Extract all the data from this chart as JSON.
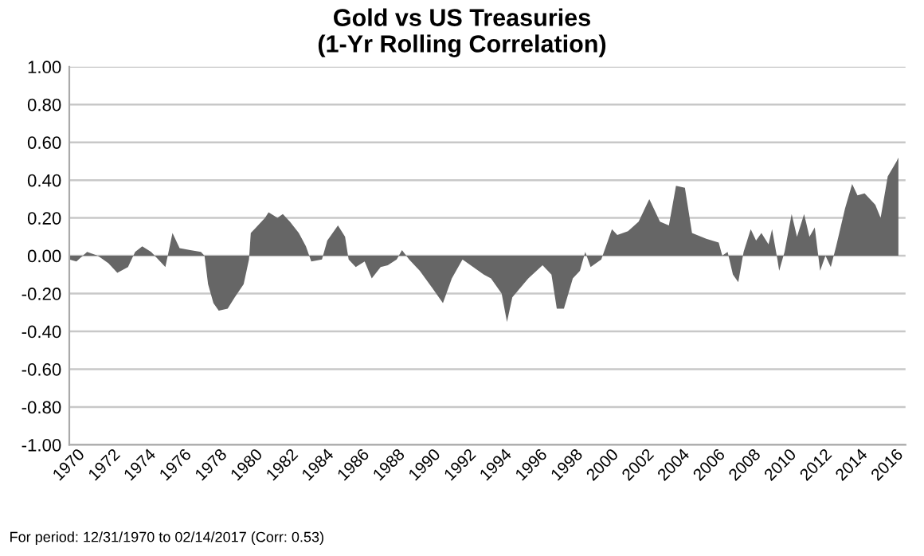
{
  "chart_data": {
    "type": "area",
    "title": "Gold vs US Treasuries\n(1-Yr Rolling Correlation)",
    "x": [
      1970.0,
      1970.4,
      1971.0,
      1971.6,
      1972.2,
      1972.7,
      1973.3,
      1973.7,
      1974.1,
      1974.6,
      1975.0,
      1975.4,
      1975.8,
      1976.2,
      1976.8,
      1977.4,
      1977.6,
      1977.8,
      1978.1,
      1978.4,
      1978.9,
      1979.3,
      1979.8,
      1980.1,
      1980.2,
      1980.5,
      1981.0,
      1981.2,
      1981.7,
      1982.0,
      1982.4,
      1982.9,
      1983.3,
      1983.6,
      1984.2,
      1984.5,
      1985.1,
      1985.5,
      1985.7,
      1986.1,
      1986.6,
      1987.0,
      1987.5,
      1987.9,
      1988.4,
      1988.7,
      1989.1,
      1989.7,
      1990.4,
      1991.0,
      1991.5,
      1992.1,
      1992.7,
      1993.3,
      1993.7,
      1994.3,
      1994.6,
      1994.9,
      1995.8,
      1996.6,
      1997.1,
      1997.4,
      1997.8,
      1998.3,
      1998.7,
      1999.0,
      1999.3,
      1999.9,
      2000.2,
      2000.5,
      2000.8,
      2001.4,
      2002.0,
      2002.6,
      2003.2,
      2003.7,
      2004.1,
      2004.6,
      2005.0,
      2005.8,
      2006.5,
      2006.7,
      2007.0,
      2007.3,
      2007.6,
      2007.9,
      2008.3,
      2008.6,
      2008.9,
      2009.3,
      2009.5,
      2009.8,
      2009.9,
      2010.2,
      2010.6,
      2010.9,
      2011.3,
      2011.6,
      2011.9,
      2012.2,
      2012.5,
      2012.8,
      2013.1,
      2013.6,
      2014.0,
      2014.3,
      2014.7,
      2015.3,
      2015.6,
      2016.0,
      2016.5,
      2016.6
    ],
    "series": [
      {
        "color": "#666666",
        "values": [
          -0.02,
          -0.03,
          0.02,
          0.0,
          -0.04,
          -0.09,
          -0.06,
          0.02,
          0.05,
          0.02,
          -0.02,
          -0.06,
          0.12,
          0.04,
          0.03,
          0.02,
          0.0,
          -0.15,
          -0.25,
          -0.29,
          -0.28,
          -0.22,
          -0.15,
          -0.02,
          0.12,
          0.15,
          0.2,
          0.23,
          0.2,
          0.22,
          0.18,
          0.12,
          0.05,
          -0.03,
          -0.02,
          0.08,
          0.16,
          0.1,
          -0.02,
          -0.06,
          -0.03,
          -0.12,
          -0.06,
          -0.05,
          -0.02,
          0.03,
          -0.02,
          -0.08,
          -0.17,
          -0.25,
          -0.12,
          -0.02,
          -0.06,
          -0.1,
          -0.12,
          -0.2,
          -0.35,
          -0.22,
          -0.12,
          -0.05,
          -0.1,
          -0.28,
          -0.28,
          -0.12,
          -0.08,
          0.02,
          -0.06,
          -0.02,
          0.06,
          0.14,
          0.11,
          0.13,
          0.18,
          0.3,
          0.18,
          0.16,
          0.37,
          0.36,
          0.12,
          0.09,
          0.07,
          0.0,
          0.02,
          -0.1,
          -0.14,
          0.02,
          0.14,
          0.08,
          0.12,
          0.06,
          0.14,
          -0.02,
          -0.08,
          0.02,
          0.22,
          0.1,
          0.22,
          0.1,
          0.15,
          -0.08,
          0.0,
          -0.06,
          0.05,
          0.25,
          0.38,
          0.32,
          0.33,
          0.27,
          0.2,
          0.42,
          0.5,
          0.52
        ]
      }
    ],
    "xlim": [
      1970,
      2017
    ],
    "xticks": [
      1970,
      1972,
      1974,
      1976,
      1978,
      1980,
      1982,
      1984,
      1986,
      1988,
      1990,
      1992,
      1994,
      1996,
      1998,
      2000,
      2002,
      2004,
      2006,
      2008,
      2010,
      2012,
      2014,
      2016
    ],
    "ylim": [
      -1.0,
      1.0
    ],
    "yticks": [
      {
        "value": 1.0,
        "label": "1.00"
      },
      {
        "value": 0.8,
        "label": "0.80"
      },
      {
        "value": 0.6,
        "label": "0.60"
      },
      {
        "value": 0.4,
        "label": "0.40"
      },
      {
        "value": 0.2,
        "label": "0.20"
      },
      {
        "value": 0.0,
        "label": "0.00"
      },
      {
        "value": -0.2,
        "label": "-0.20"
      },
      {
        "value": -0.4,
        "label": "-0.40"
      },
      {
        "value": -0.6,
        "label": "-0.60"
      },
      {
        "value": -0.8,
        "label": "-0.80"
      },
      {
        "value": -1.0,
        "label": "-1.00"
      }
    ],
    "grid": "y",
    "annotations": [
      "For period: 12/31/1970 to 02/14/2017 (Corr: 0.53)"
    ]
  }
}
